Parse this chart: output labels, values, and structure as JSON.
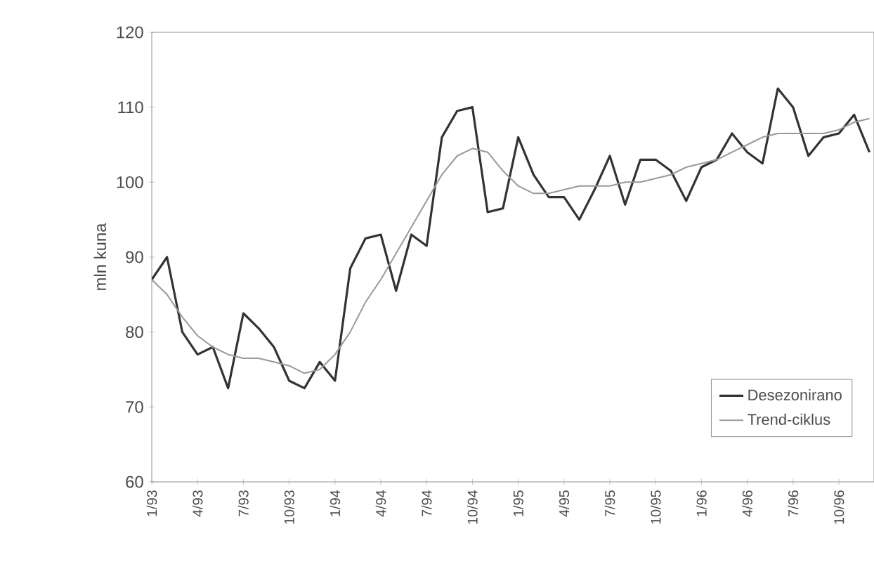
{
  "chart_data": {
    "type": "line",
    "ylabel": "mln kuna",
    "x": [
      "1993-01",
      "1993-02",
      "1993-03",
      "1993-04",
      "1993-05",
      "1993-06",
      "1993-07",
      "1993-08",
      "1993-09",
      "1993-10",
      "1993-11",
      "1993-12",
      "1994-01",
      "1994-02",
      "1994-03",
      "1994-04",
      "1994-05",
      "1994-06",
      "1994-07",
      "1994-08",
      "1994-09",
      "1994-10",
      "1994-11",
      "1994-12",
      "1995-01",
      "1995-02",
      "1995-03",
      "1995-04",
      "1995-05",
      "1995-06",
      "1995-07",
      "1995-08",
      "1995-09",
      "1995-10",
      "1995-11",
      "1995-12",
      "1996-01",
      "1996-02",
      "1996-03",
      "1996-04",
      "1996-05",
      "1996-06",
      "1996-07",
      "1996-08",
      "1996-09",
      "1996-10",
      "1996-11",
      "1996-12"
    ],
    "series": [
      {
        "name": "Desezonirano",
        "color": "#333333",
        "values": [
          87,
          90,
          80,
          77,
          78,
          72.5,
          82.5,
          80.5,
          78,
          73.5,
          72.5,
          76,
          73.5,
          88.5,
          92.5,
          93,
          85.5,
          93,
          91.5,
          106,
          109.5,
          110,
          96,
          96.5,
          106,
          101,
          98,
          98,
          95,
          99,
          103.5,
          97,
          103,
          103,
          101.5,
          97.5,
          102,
          103,
          106.5,
          104,
          102.5,
          112.5,
          110,
          103.5,
          106,
          106.5,
          109,
          104
        ]
      },
      {
        "name": "Trend-ciklus",
        "color": "#999999",
        "values": [
          87,
          85,
          82,
          79.5,
          78,
          77,
          76.5,
          76.5,
          76,
          75.5,
          74.5,
          75,
          77,
          80,
          84,
          87,
          90.5,
          94,
          97.5,
          101,
          103.5,
          104.5,
          104,
          101.5,
          99.5,
          98.5,
          98.5,
          99,
          99.5,
          99.5,
          99.5,
          100,
          100,
          100.5,
          101,
          102,
          102.5,
          103,
          104,
          105,
          106,
          106.5,
          106.5,
          106.5,
          106.5,
          107,
          108,
          108.5
        ]
      }
    ],
    "xlim": [
      "1993-01",
      "1996-12"
    ],
    "xticks": [
      {
        "value": "1993-01",
        "label": "1/93"
      },
      {
        "value": "1993-04",
        "label": "4/93"
      },
      {
        "value": "1993-07",
        "label": "7/93"
      },
      {
        "value": "1993-10",
        "label": "10/93"
      },
      {
        "value": "1994-01",
        "label": "1/94"
      },
      {
        "value": "1994-04",
        "label": "4/94"
      },
      {
        "value": "1994-07",
        "label": "7/94"
      },
      {
        "value": "1994-10",
        "label": "10/94"
      },
      {
        "value": "1995-01",
        "label": "1/95"
      },
      {
        "value": "1995-04",
        "label": "4/95"
      },
      {
        "value": "1995-07",
        "label": "7/95"
      },
      {
        "value": "1995-10",
        "label": "10/95"
      },
      {
        "value": "1996-01",
        "label": "1/96"
      },
      {
        "value": "1996-04",
        "label": "4/96"
      },
      {
        "value": "1996-07",
        "label": "7/96"
      },
      {
        "value": "1996-10",
        "label": "10/96"
      }
    ],
    "ylim": [
      60,
      120
    ],
    "yticks": [
      60,
      70,
      80,
      90,
      100,
      110,
      120
    ],
    "grid": false,
    "legend": "bottom right",
    "marker": "none",
    "line_style": "solid"
  }
}
